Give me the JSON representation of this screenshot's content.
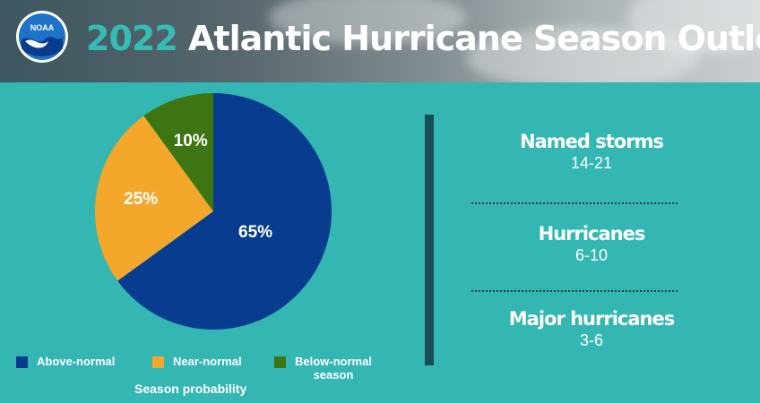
{
  "header": {
    "logo_text": "NOAA",
    "title_year": "2022",
    "title_rest": "Atlantic Hurricane Season Outlook"
  },
  "chart_data": {
    "type": "pie",
    "slices": [
      {
        "label": "Above-normal",
        "value": 65,
        "display": "65%",
        "color": "#083c8e"
      },
      {
        "label": "Near-normal",
        "value": 25,
        "display": "25%",
        "color": "#f3a72b"
      },
      {
        "label": "Below-normal season",
        "value": 10,
        "display": "10%",
        "color": "#3c7512"
      }
    ],
    "legend": [
      "Above-normal",
      "Near-normal",
      "Below-normal season"
    ],
    "legend_lines": {
      "above": [
        "Above-normal"
      ],
      "near": [
        "Near-normal"
      ],
      "below": [
        "Below-normal",
        "season"
      ]
    },
    "caption": "Season probability"
  },
  "stats": [
    {
      "label": "Named storms",
      "value": "14-21"
    },
    {
      "label": "Hurricanes",
      "value": "6-10"
    },
    {
      "label": "Major hurricanes",
      "value": "3-6"
    }
  ]
}
